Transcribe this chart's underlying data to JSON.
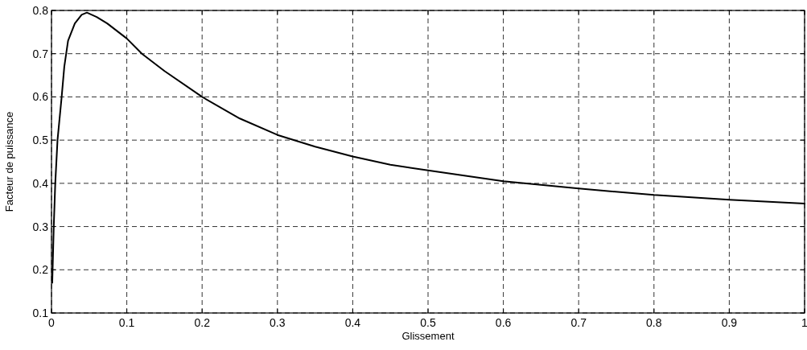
{
  "chart_data": {
    "type": "line",
    "xlabel": "Glissement",
    "ylabel": "Facteur de puissance",
    "xlim": [
      0,
      1
    ],
    "ylim": [
      0.1,
      0.8
    ],
    "xticks": [
      0,
      0.1,
      0.2,
      0.3,
      0.4,
      0.5,
      0.6,
      0.7,
      0.8,
      0.9,
      1
    ],
    "yticks": [
      0.1,
      0.2,
      0.3,
      0.4,
      0.5,
      0.6,
      0.7,
      0.8
    ],
    "grid": true,
    "line_style": "solid",
    "marker": "none",
    "series": [
      {
        "color": "#000000",
        "x": [
          0.001,
          0.003,
          0.005,
          0.008,
          0.0135,
          0.017,
          0.022,
          0.031,
          0.04,
          0.047,
          0.06,
          0.074,
          0.1,
          0.12,
          0.15,
          0.2,
          0.25,
          0.3,
          0.35,
          0.4,
          0.45,
          0.5,
          0.6,
          0.7,
          0.8,
          0.9,
          1
        ],
        "values": [
          0.17,
          0.3,
          0.4,
          0.5,
          0.6,
          0.67,
          0.73,
          0.77,
          0.79,
          0.795,
          0.785,
          0.77,
          0.735,
          0.7,
          0.66,
          0.6,
          0.55,
          0.512,
          0.485,
          0.462,
          0.443,
          0.43,
          0.405,
          0.388,
          0.373,
          0.362,
          0.353
        ]
      }
    ]
  }
}
